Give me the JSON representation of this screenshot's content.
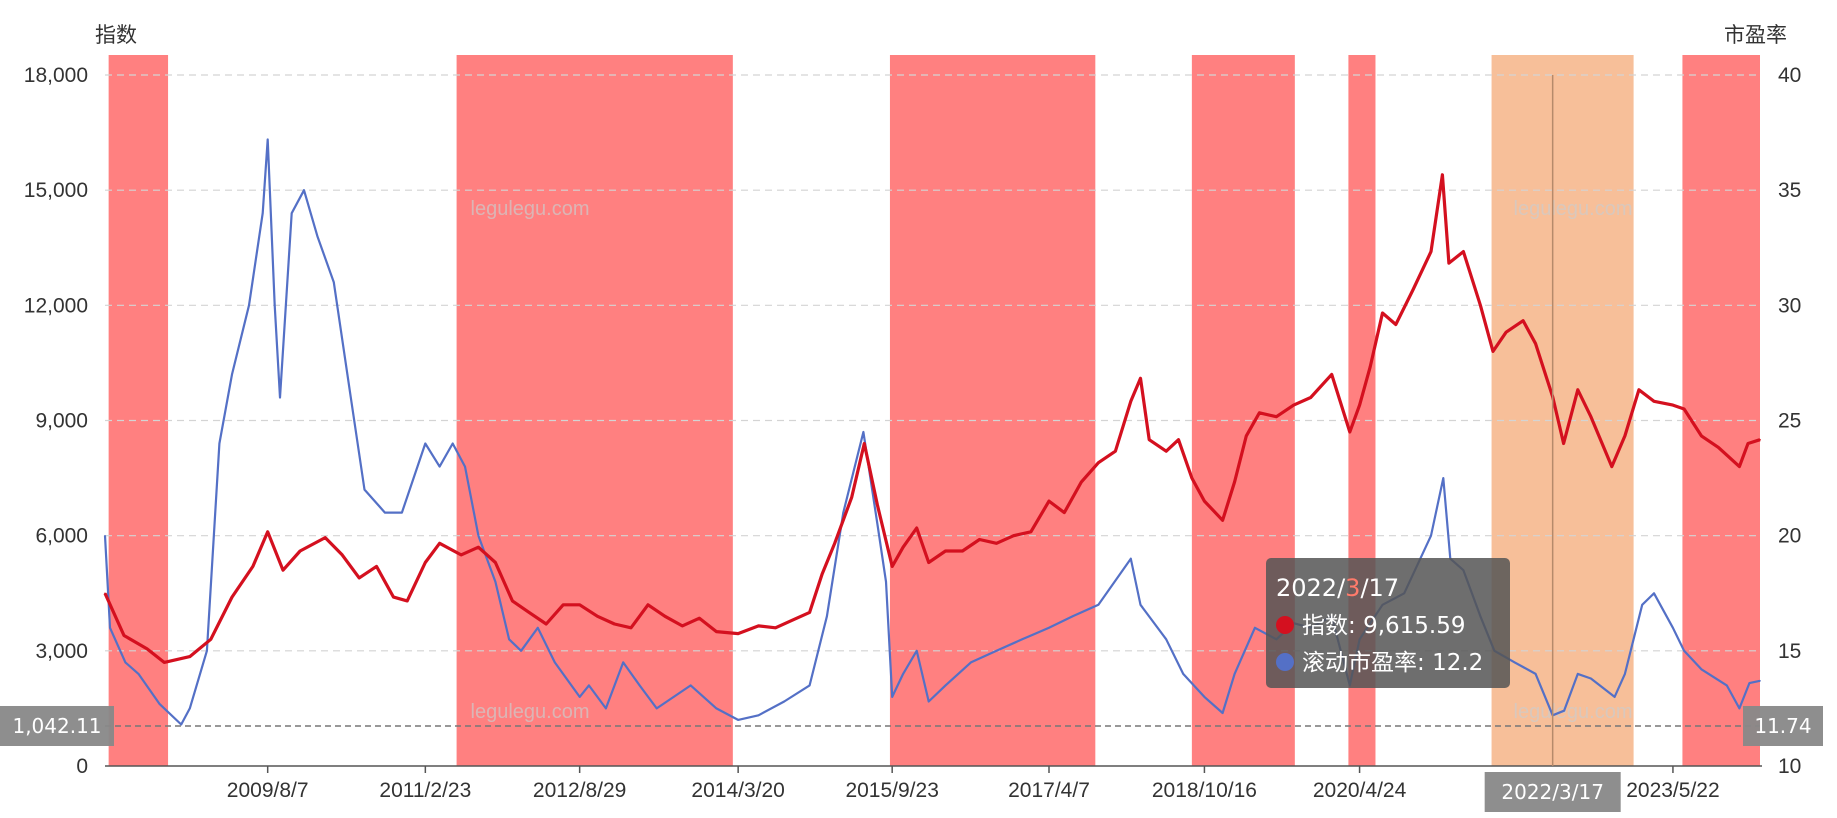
{
  "chart_data": {
    "type": "line",
    "left_axis_title": "指数",
    "right_axis_title": "市盈率",
    "left_ylim": [
      0,
      18000
    ],
    "left_ticks": [
      {
        "value": 0,
        "label": "0"
      },
      {
        "value": 3000,
        "label": "3,000"
      },
      {
        "value": 6000,
        "label": "6,000"
      },
      {
        "value": 9000,
        "label": "9,000"
      },
      {
        "value": 12000,
        "label": "12,000"
      },
      {
        "value": 15000,
        "label": "15,000"
      },
      {
        "value": 18000,
        "label": "18,000"
      }
    ],
    "right_ylim": [
      10,
      40
    ],
    "right_ticks": [
      {
        "value": 10,
        "label": "10"
      },
      {
        "value": 15,
        "label": "15"
      },
      {
        "value": 20,
        "label": "20"
      },
      {
        "value": 25,
        "label": "25"
      },
      {
        "value": 30,
        "label": "30"
      },
      {
        "value": 35,
        "label": "35"
      },
      {
        "value": 40,
        "label": "40"
      }
    ],
    "x_range": [
      "2008/1/2",
      "2024/3/29"
    ],
    "x_ticks": [
      {
        "date": "2009/8/7",
        "label": "2009/8/7"
      },
      {
        "date": "2011/2/23",
        "label": "2011/2/23"
      },
      {
        "date": "2012/8/29",
        "label": "2012/8/29"
      },
      {
        "date": "2014/3/20",
        "label": "2014/3/20"
      },
      {
        "date": "2015/9/23",
        "label": "2015/9/23"
      },
      {
        "date": "2017/4/7",
        "label": "2017/4/7"
      },
      {
        "date": "2018/10/16",
        "label": "2018/10/16"
      },
      {
        "date": "2020/4/24",
        "label": "2020/4/24"
      },
      {
        "date": "2023/5/22",
        "label": "2023/5/22"
      }
    ],
    "grid": "dashed-horizontal",
    "shaded_periods": [
      {
        "start": "2008/1/15",
        "end": "2008/8/15",
        "color": "#ff8080"
      },
      {
        "start": "2011/6/15",
        "end": "2014/3/1",
        "color": "#ff8080"
      },
      {
        "start": "2015/9/15",
        "end": "2017/9/20",
        "color": "#ff8080"
      },
      {
        "start": "2018/9/1",
        "end": "2019/9/5",
        "color": "#ff8080"
      },
      {
        "start": "2020/3/15",
        "end": "2020/6/20",
        "color": "#ff8080"
      },
      {
        "start": "2021/8/10",
        "end": "2023/1/1",
        "color": "#f7bf99"
      },
      {
        "start": "2023/6/25",
        "end": "2024/3/29",
        "color": "#ff8080"
      }
    ],
    "series": [
      {
        "name": "指数",
        "axis": "left",
        "color": "#d4101f",
        "points": [
          [
            "2008/1/2",
            4500
          ],
          [
            "2008/3/10",
            3400
          ],
          [
            "2008/6/1",
            3050
          ],
          [
            "2008/8/1",
            2700
          ],
          [
            "2008/11/1",
            2850
          ],
          [
            "2009/1/15",
            3300
          ],
          [
            "2009/4/1",
            4400
          ],
          [
            "2009/6/15",
            5200
          ],
          [
            "2009/8/7",
            6100
          ],
          [
            "2009/10/1",
            5100
          ],
          [
            "2009/12/1",
            5600
          ],
          [
            "2010/3/1",
            5950
          ],
          [
            "2010/5/1",
            5500
          ],
          [
            "2010/7/1",
            4900
          ],
          [
            "2010/9/1",
            5200
          ],
          [
            "2010/11/1",
            4400
          ],
          [
            "2010/12/20",
            4300
          ],
          [
            "2011/2/23",
            5300
          ],
          [
            "2011/4/15",
            5800
          ],
          [
            "2011/7/1",
            5500
          ],
          [
            "2011/9/1",
            5700
          ],
          [
            "2011/11/1",
            5300
          ],
          [
            "2012/1/1",
            4300
          ],
          [
            "2012/3/1",
            4000
          ],
          [
            "2012/5/1",
            3700
          ],
          [
            "2012/7/1",
            4200
          ],
          [
            "2012/8/29",
            4200
          ],
          [
            "2012/11/1",
            3900
          ],
          [
            "2013/1/1",
            3700
          ],
          [
            "2013/3/1",
            3600
          ],
          [
            "2013/5/1",
            4200
          ],
          [
            "2013/7/1",
            3900
          ],
          [
            "2013/9/1",
            3650
          ],
          [
            "2013/11/1",
            3850
          ],
          [
            "2014/1/1",
            3500
          ],
          [
            "2014/3/20",
            3450
          ],
          [
            "2014/6/1",
            3650
          ],
          [
            "2014/8/1",
            3600
          ],
          [
            "2014/10/1",
            3800
          ],
          [
            "2014/12/1",
            4000
          ],
          [
            "2015/1/15",
            5000
          ],
          [
            "2015/3/1",
            5800
          ],
          [
            "2015/5/1",
            7000
          ],
          [
            "2015/6/15",
            8400
          ],
          [
            "2015/8/1",
            6800
          ],
          [
            "2015/9/23",
            5200
          ],
          [
            "2015/11/1",
            5700
          ],
          [
            "2015/12/20",
            6200
          ],
          [
            "2016/2/1",
            5300
          ],
          [
            "2016/4/1",
            5600
          ],
          [
            "2016/6/1",
            5600
          ],
          [
            "2016/8/1",
            5900
          ],
          [
            "2016/10/1",
            5800
          ],
          [
            "2016/12/1",
            6000
          ],
          [
            "2017/2/1",
            6100
          ],
          [
            "2017/4/7",
            6900
          ],
          [
            "2017/6/1",
            6600
          ],
          [
            "2017/8/1",
            7400
          ],
          [
            "2017/10/1",
            7900
          ],
          [
            "2017/12/1",
            8200
          ],
          [
            "2018/1/25",
            9500
          ],
          [
            "2018/3/1",
            10100
          ],
          [
            "2018/4/1",
            8500
          ],
          [
            "2018/6/1",
            8200
          ],
          [
            "2018/7/15",
            8500
          ],
          [
            "2018/9/1",
            7500
          ],
          [
            "2018/10/16",
            6900
          ],
          [
            "2018/12/20",
            6400
          ],
          [
            "2019/2/1",
            7400
          ],
          [
            "2019/3/15",
            8600
          ],
          [
            "2019/5/1",
            9200
          ],
          [
            "2019/7/1",
            9100
          ],
          [
            "2019/9/1",
            9400
          ],
          [
            "2019/11/1",
            9600
          ],
          [
            "2020/1/15",
            10200
          ],
          [
            "2020/3/20",
            8700
          ],
          [
            "2020/4/24",
            9400
          ],
          [
            "2020/6/1",
            10400
          ],
          [
            "2020/7/15",
            11800
          ],
          [
            "2020/9/1",
            11500
          ],
          [
            "2020/11/1",
            12400
          ],
          [
            "2021/1/5",
            13400
          ],
          [
            "2021/2/15",
            15400
          ],
          [
            "2021/3/10",
            13100
          ],
          [
            "2021/5/1",
            13400
          ],
          [
            "2021/7/1",
            12000
          ],
          [
            "2021/8/15",
            10800
          ],
          [
            "2021/10/1",
            11300
          ],
          [
            "2021/12/1",
            11600
          ],
          [
            "2022/1/15",
            11000
          ],
          [
            "2022/3/17",
            9615.59
          ],
          [
            "2022/4/25",
            8400
          ],
          [
            "2022/6/15",
            9800
          ],
          [
            "2022/8/1",
            9100
          ],
          [
            "2022/10/15",
            7800
          ],
          [
            "2022/12/1",
            8600
          ],
          [
            "2023/1/20",
            9800
          ],
          [
            "2023/3/15",
            9500
          ],
          [
            "2023/5/22",
            9400
          ],
          [
            "2023/7/1",
            9300
          ],
          [
            "2023/9/1",
            8600
          ],
          [
            "2023/11/1",
            8300
          ],
          [
            "2024/1/15",
            7800
          ],
          [
            "2024/2/15",
            8400
          ],
          [
            "2024/3/29",
            8500
          ]
        ]
      },
      {
        "name": "滚动市盈率",
        "axis": "right",
        "color": "#5470c6",
        "points": [
          [
            "2008/1/2",
            20
          ],
          [
            "2008/1/20",
            16
          ],
          [
            "2008/3/15",
            14.5
          ],
          [
            "2008/5/1",
            14
          ],
          [
            "2008/7/15",
            12.7
          ],
          [
            "2008/10/1",
            11.8
          ],
          [
            "2008/11/1",
            12.5
          ],
          [
            "2009/1/1",
            15
          ],
          [
            "2009/2/15",
            24
          ],
          [
            "2009/4/1",
            27
          ],
          [
            "2009/6/1",
            30
          ],
          [
            "2009/7/20",
            34
          ],
          [
            "2009/8/7",
            37.2
          ],
          [
            "2009/9/1",
            30
          ],
          [
            "2009/9/20",
            26
          ],
          [
            "2009/11/1",
            34
          ],
          [
            "2009/12/15",
            35
          ],
          [
            "2010/2/1",
            33
          ],
          [
            "2010/4/1",
            31
          ],
          [
            "2010/6/1",
            26
          ],
          [
            "2010/7/20",
            22
          ],
          [
            "2010/10/1",
            21
          ],
          [
            "2010/12/1",
            21
          ],
          [
            "2011/2/23",
            24
          ],
          [
            "2011/4/15",
            23
          ],
          [
            "2011/6/1",
            24
          ],
          [
            "2011/7/15",
            23
          ],
          [
            "2011/9/1",
            20
          ],
          [
            "2011/11/1",
            18
          ],
          [
            "2011/12/20",
            15.5
          ],
          [
            "2012/2/1",
            15
          ],
          [
            "2012/4/1",
            16
          ],
          [
            "2012/6/1",
            14.5
          ],
          [
            "2012/8/29",
            13
          ],
          [
            "2012/10/1",
            13.5
          ],
          [
            "2012/12/1",
            12.5
          ],
          [
            "2013/2/1",
            14.5
          ],
          [
            "2013/4/1",
            13.5
          ],
          [
            "2013/6/1",
            12.5
          ],
          [
            "2013/8/1",
            13
          ],
          [
            "2013/10/1",
            13.5
          ],
          [
            "2014/1/1",
            12.5
          ],
          [
            "2014/3/20",
            12
          ],
          [
            "2014/6/1",
            12.2
          ],
          [
            "2014/9/1",
            12.8
          ],
          [
            "2014/12/1",
            13.5
          ],
          [
            "2015/2/1",
            16.5
          ],
          [
            "2015/4/1",
            21
          ],
          [
            "2015/6/12",
            24.5
          ],
          [
            "2015/8/1",
            20.5
          ],
          [
            "2015/9/1",
            18
          ],
          [
            "2015/9/23",
            13
          ],
          [
            "2015/11/1",
            14
          ],
          [
            "2015/12/20",
            15
          ],
          [
            "2016/2/1",
            12.8
          ],
          [
            "2016/4/1",
            13.5
          ],
          [
            "2016/7/1",
            14.5
          ],
          [
            "2016/10/1",
            15
          ],
          [
            "2017/1/1",
            15.5
          ],
          [
            "2017/4/7",
            16
          ],
          [
            "2017/7/1",
            16.5
          ],
          [
            "2017/10/1",
            17
          ],
          [
            "2018/1/25",
            19
          ],
          [
            "2018/3/1",
            17
          ],
          [
            "2018/6/1",
            15.5
          ],
          [
            "2018/8/1",
            14
          ],
          [
            "2018/10/16",
            13
          ],
          [
            "2018/12/20",
            12.3
          ],
          [
            "2019/2/1",
            14
          ],
          [
            "2019/4/15",
            16
          ],
          [
            "2019/7/1",
            15.5
          ],
          [
            "2019/9/1",
            16.2
          ],
          [
            "2019/11/1",
            16
          ],
          [
            "2020/1/15",
            16.5
          ],
          [
            "2020/3/20",
            13.5
          ],
          [
            "2020/4/24",
            15.5
          ],
          [
            "2020/7/15",
            17
          ],
          [
            "2020/10/1",
            17.5
          ],
          [
            "2021/1/5",
            20
          ],
          [
            "2021/2/18",
            22.5
          ],
          [
            "2021/3/15",
            19
          ],
          [
            "2021/5/1",
            18.5
          ],
          [
            "2021/7/1",
            16.5
          ],
          [
            "2021/8/20",
            15
          ],
          [
            "2021/11/1",
            14.5
          ],
          [
            "2022/1/15",
            14
          ],
          [
            "2022/3/17",
            12.2
          ],
          [
            "2022/4/27",
            12.4
          ],
          [
            "2022/6/15",
            14
          ],
          [
            "2022/8/1",
            13.8
          ],
          [
            "2022/10/25",
            13
          ],
          [
            "2022/12/1",
            14
          ],
          [
            "2023/2/1",
            17
          ],
          [
            "2023/3/15",
            17.5
          ],
          [
            "2023/5/22",
            16
          ],
          [
            "2023/7/1",
            15
          ],
          [
            "2023/9/1",
            14.2
          ],
          [
            "2023/12/1",
            13.5
          ],
          [
            "2024/1/15",
            12.5
          ],
          [
            "2024/2/20",
            13.6
          ],
          [
            "2024/3/29",
            13.7
          ]
        ]
      }
    ],
    "watermarks": [
      "legulegu.com",
      "legulegu.com",
      "legulegu.com",
      "legulegu.com"
    ],
    "axis_pointer": {
      "date": "2022/3/17",
      "x_label": "2022/3/17",
      "y_left_value": 1042.11,
      "y_left_label": "1,042.11",
      "y_right_label": "11.74"
    },
    "tooltip": {
      "date_parts": [
        "2022",
        "/",
        "3",
        "/",
        "17"
      ],
      "rows": [
        {
          "name": "指数",
          "sep": ": ",
          "value": "9,615.59",
          "color": "#d4101f"
        },
        {
          "name": "滚动市盈率",
          "sep": ": ",
          "value": "12.2",
          "color": "#5470c6"
        }
      ]
    }
  }
}
